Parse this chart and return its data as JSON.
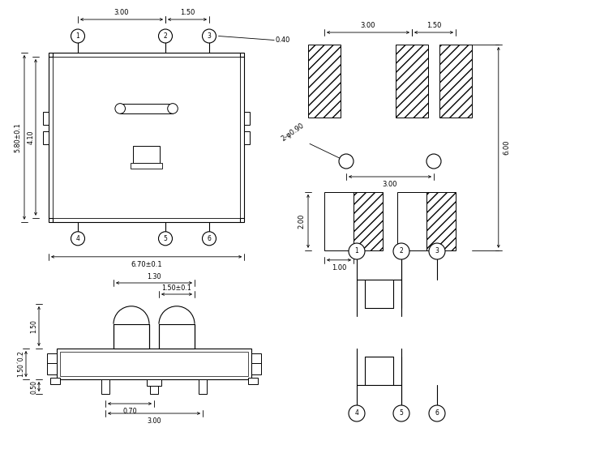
{
  "bg_color": "#ffffff",
  "lc": "#000000",
  "fs": 6.5,
  "lw": 0.8
}
